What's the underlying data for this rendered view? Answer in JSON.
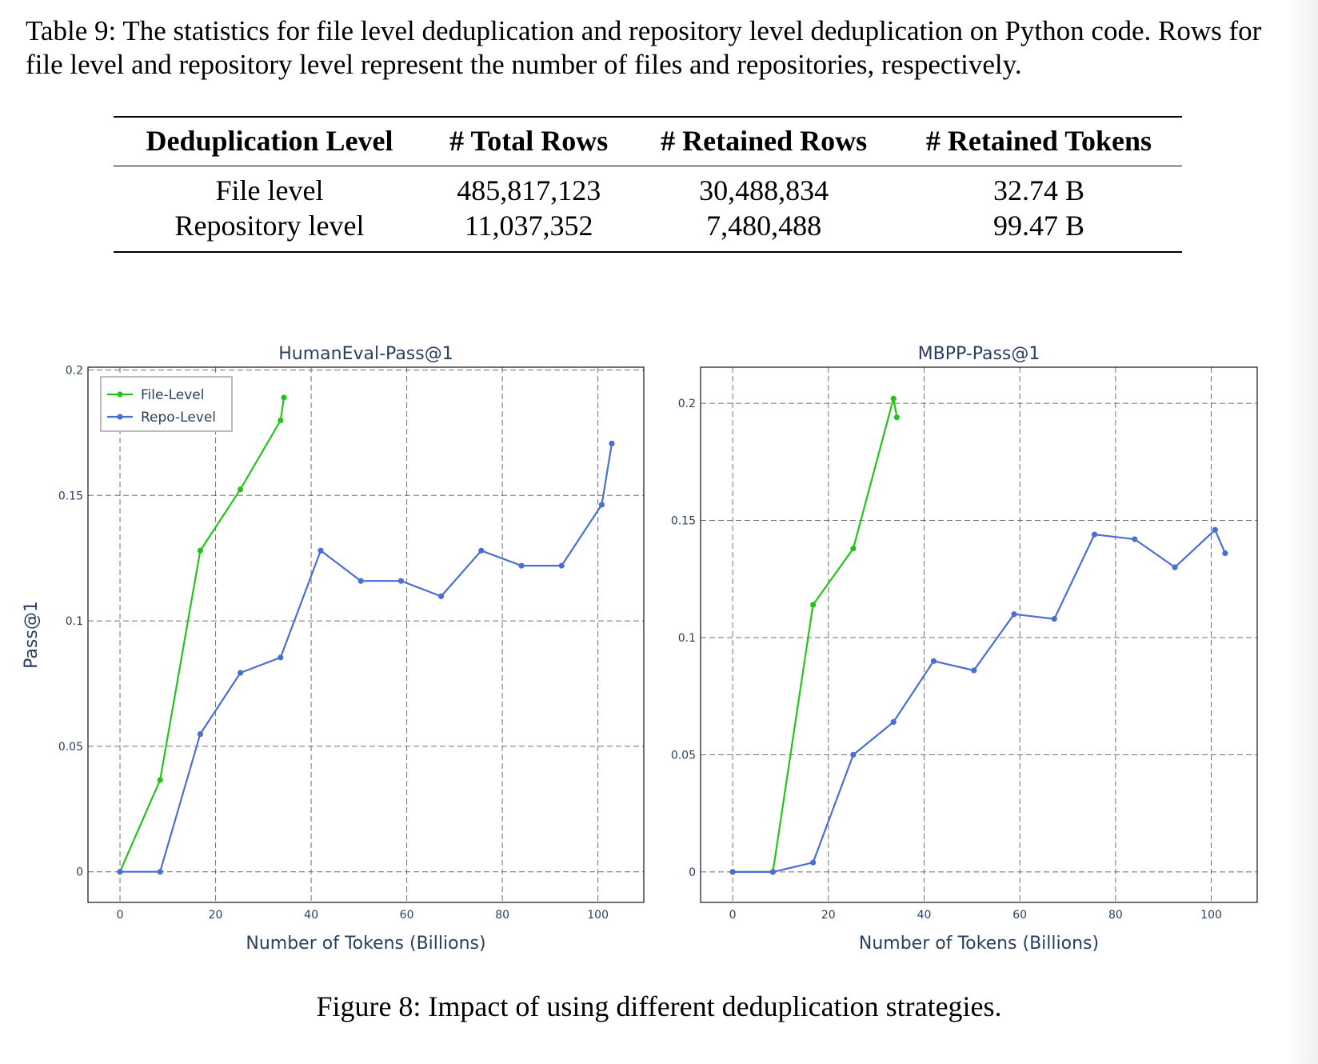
{
  "table_caption": "Table 9: The statistics for file level deduplication and repository level deduplication on Python code. Rows for file level and repository level represent the number of files and repositories, respectively.",
  "table": {
    "headers": [
      "Deduplication Level",
      "# Total Rows",
      "# Retained Rows",
      "# Retained Tokens"
    ],
    "rows": [
      [
        "File level",
        "485,817,123",
        "30,488,834",
        "32.74 B"
      ],
      [
        "Repository level",
        "11,037,352",
        "7,480,488",
        "99.47 B"
      ]
    ]
  },
  "figure_caption": "Figure 8: Impact of using different deduplication strategies.",
  "colors": {
    "file_level": "#22c41a",
    "repo_level": "#4a6fd2",
    "axis_text": "#2a3f5f"
  },
  "chart_data": [
    {
      "type": "line",
      "title": "HumanEval-Pass@1",
      "xlabel": "Number of Tokens (Billions)",
      "ylabel": "Pass@1",
      "xlim": [
        -6.7,
        109.6
      ],
      "ylim": [
        -0.0122,
        0.2011
      ],
      "xticks": [
        0,
        20,
        40,
        60,
        80,
        100
      ],
      "yticks": [
        0,
        0.05,
        0.1,
        0.15,
        0.2
      ],
      "xtick_labels": [
        "0",
        "20",
        "40",
        "60",
        "80",
        "100"
      ],
      "ytick_labels": [
        "0",
        "0.05",
        "0.1",
        "0.15",
        "0.2"
      ],
      "grid": true,
      "legend": "top-left",
      "series": [
        {
          "name": "File-Level",
          "color": "#22c41a",
          "x": [
            0,
            8.4,
            16.8,
            25.2,
            33.6,
            34.3
          ],
          "y": [
            0,
            0.0366,
            0.128,
            0.1524,
            0.1799,
            0.189
          ]
        },
        {
          "name": "Repo-Level",
          "color": "#4a6fd2",
          "x": [
            0,
            8.4,
            16.8,
            25.2,
            33.6,
            42.0,
            50.4,
            58.8,
            67.2,
            75.6,
            84.0,
            92.4,
            100.8,
            102.9
          ],
          "y": [
            0,
            0,
            0.0549,
            0.0793,
            0.0854,
            0.128,
            0.1159,
            0.1159,
            0.1098,
            0.128,
            0.122,
            0.122,
            0.1463,
            0.1707
          ]
        }
      ]
    },
    {
      "type": "line",
      "title": "MBPP-Pass@1",
      "xlabel": "Number of Tokens (Billions)",
      "ylabel": "",
      "xlim": [
        -6.7,
        109.6
      ],
      "ylim": [
        -0.013,
        0.2154
      ],
      "xticks": [
        0,
        20,
        40,
        60,
        80,
        100
      ],
      "yticks": [
        0,
        0.05,
        0.1,
        0.15,
        0.2
      ],
      "xtick_labels": [
        "0",
        "20",
        "40",
        "60",
        "80",
        "100"
      ],
      "ytick_labels": [
        "0",
        "0.05",
        "0.1",
        "0.15",
        "0.2"
      ],
      "grid": true,
      "legend": "none",
      "series": [
        {
          "name": "File-Level",
          "color": "#22c41a",
          "x": [
            0,
            8.4,
            16.8,
            25.2,
            33.6,
            34.3
          ],
          "y": [
            0,
            0,
            0.114,
            0.138,
            0.202,
            0.194
          ]
        },
        {
          "name": "Repo-Level",
          "color": "#4a6fd2",
          "x": [
            0,
            8.4,
            16.8,
            25.2,
            33.6,
            42.0,
            50.4,
            58.8,
            67.2,
            75.6,
            84.0,
            92.4,
            100.8,
            102.9
          ],
          "y": [
            0,
            0,
            0.004,
            0.05,
            0.064,
            0.09,
            0.086,
            0.11,
            0.108,
            0.144,
            0.142,
            0.13,
            0.146,
            0.136
          ]
        }
      ]
    }
  ]
}
